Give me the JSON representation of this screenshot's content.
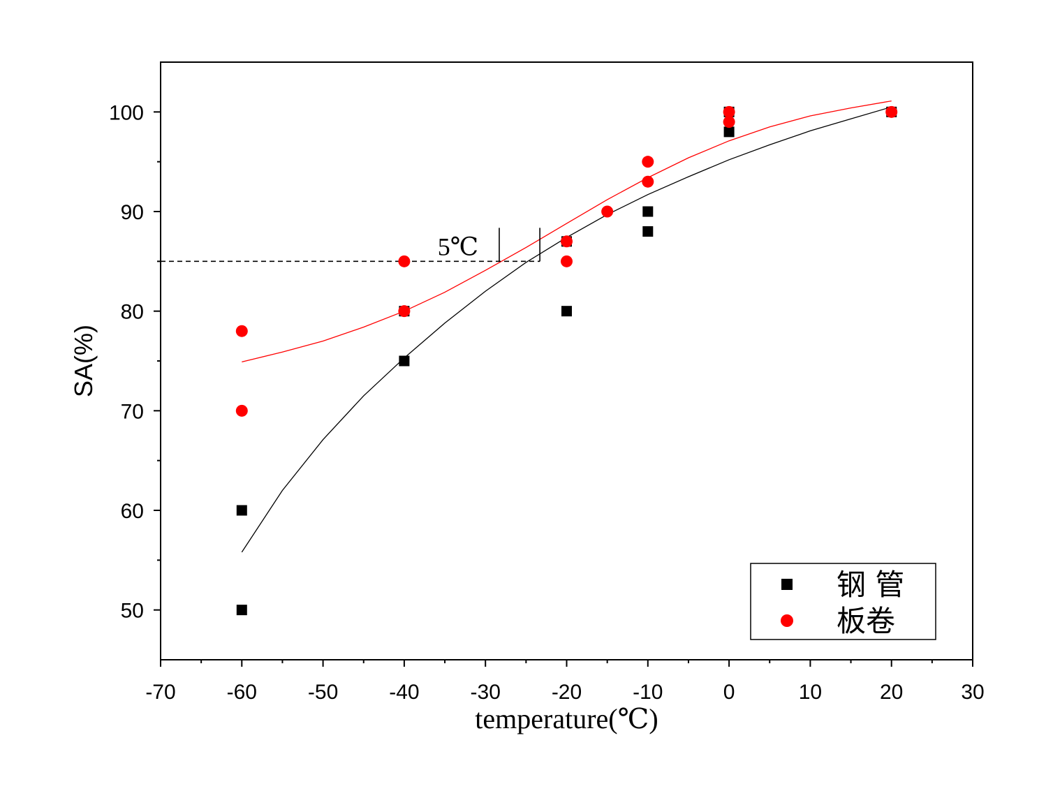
{
  "chart_data": {
    "type": "scatter",
    "xlabel": "temperature(℃)",
    "ylabel": "SA(%)",
    "xlim": [
      -70,
      30
    ],
    "ylim": [
      45,
      105
    ],
    "xticks": [
      -70,
      -60,
      -50,
      -40,
      -30,
      -20,
      -10,
      0,
      10,
      20,
      30
    ],
    "yticks": [
      50,
      60,
      70,
      80,
      90,
      100
    ],
    "grid": false,
    "legend_position": "bottom-right",
    "series": [
      {
        "name": "钢 管",
        "marker": "square",
        "color": "#000000",
        "points": [
          [
            -60,
            60
          ],
          [
            -60,
            50
          ],
          [
            -40,
            80
          ],
          [
            -40,
            75
          ],
          [
            -20,
            87
          ],
          [
            -20,
            80
          ],
          [
            -10,
            90
          ],
          [
            -10,
            88
          ],
          [
            0,
            100
          ],
          [
            0,
            98
          ],
          [
            20,
            100
          ]
        ],
        "fit": [
          [
            -60,
            55.8
          ],
          [
            -55,
            62.0
          ],
          [
            -50,
            67.1
          ],
          [
            -45,
            71.5
          ],
          [
            -40,
            75.3
          ],
          [
            -35,
            78.8
          ],
          [
            -30,
            82.0
          ],
          [
            -25,
            84.9
          ],
          [
            -20,
            87.4
          ],
          [
            -15,
            89.7
          ],
          [
            -10,
            91.7
          ],
          [
            -5,
            93.5
          ],
          [
            0,
            95.2
          ],
          [
            5,
            96.7
          ],
          [
            10,
            98.1
          ],
          [
            15,
            99.3
          ],
          [
            20,
            100.5
          ]
        ]
      },
      {
        "name": "板卷",
        "marker": "circle",
        "color": "#ff0000",
        "points": [
          [
            -60,
            78
          ],
          [
            -60,
            70
          ],
          [
            -40,
            85
          ],
          [
            -40,
            80
          ],
          [
            -20,
            87
          ],
          [
            -20,
            85
          ],
          [
            -15,
            90
          ],
          [
            -10,
            95
          ],
          [
            -10,
            93
          ],
          [
            0,
            100
          ],
          [
            0,
            99
          ],
          [
            20,
            100
          ]
        ],
        "fit": [
          [
            -60,
            74.9
          ],
          [
            -55,
            75.9
          ],
          [
            -50,
            77.0
          ],
          [
            -45,
            78.4
          ],
          [
            -40,
            80.0
          ],
          [
            -35,
            81.9
          ],
          [
            -30,
            84.1
          ],
          [
            -25,
            86.4
          ],
          [
            -20,
            88.8
          ],
          [
            -15,
            91.2
          ],
          [
            -10,
            93.4
          ],
          [
            -5,
            95.4
          ],
          [
            0,
            97.1
          ],
          [
            5,
            98.5
          ],
          [
            10,
            99.6
          ],
          [
            15,
            100.4
          ],
          [
            20,
            101.1
          ]
        ]
      }
    ],
    "annotation": {
      "text": "5℃",
      "reference_y": 85,
      "dashed_to_x": -23.3,
      "marker_x": [
        -28.3,
        -23.3
      ]
    }
  }
}
